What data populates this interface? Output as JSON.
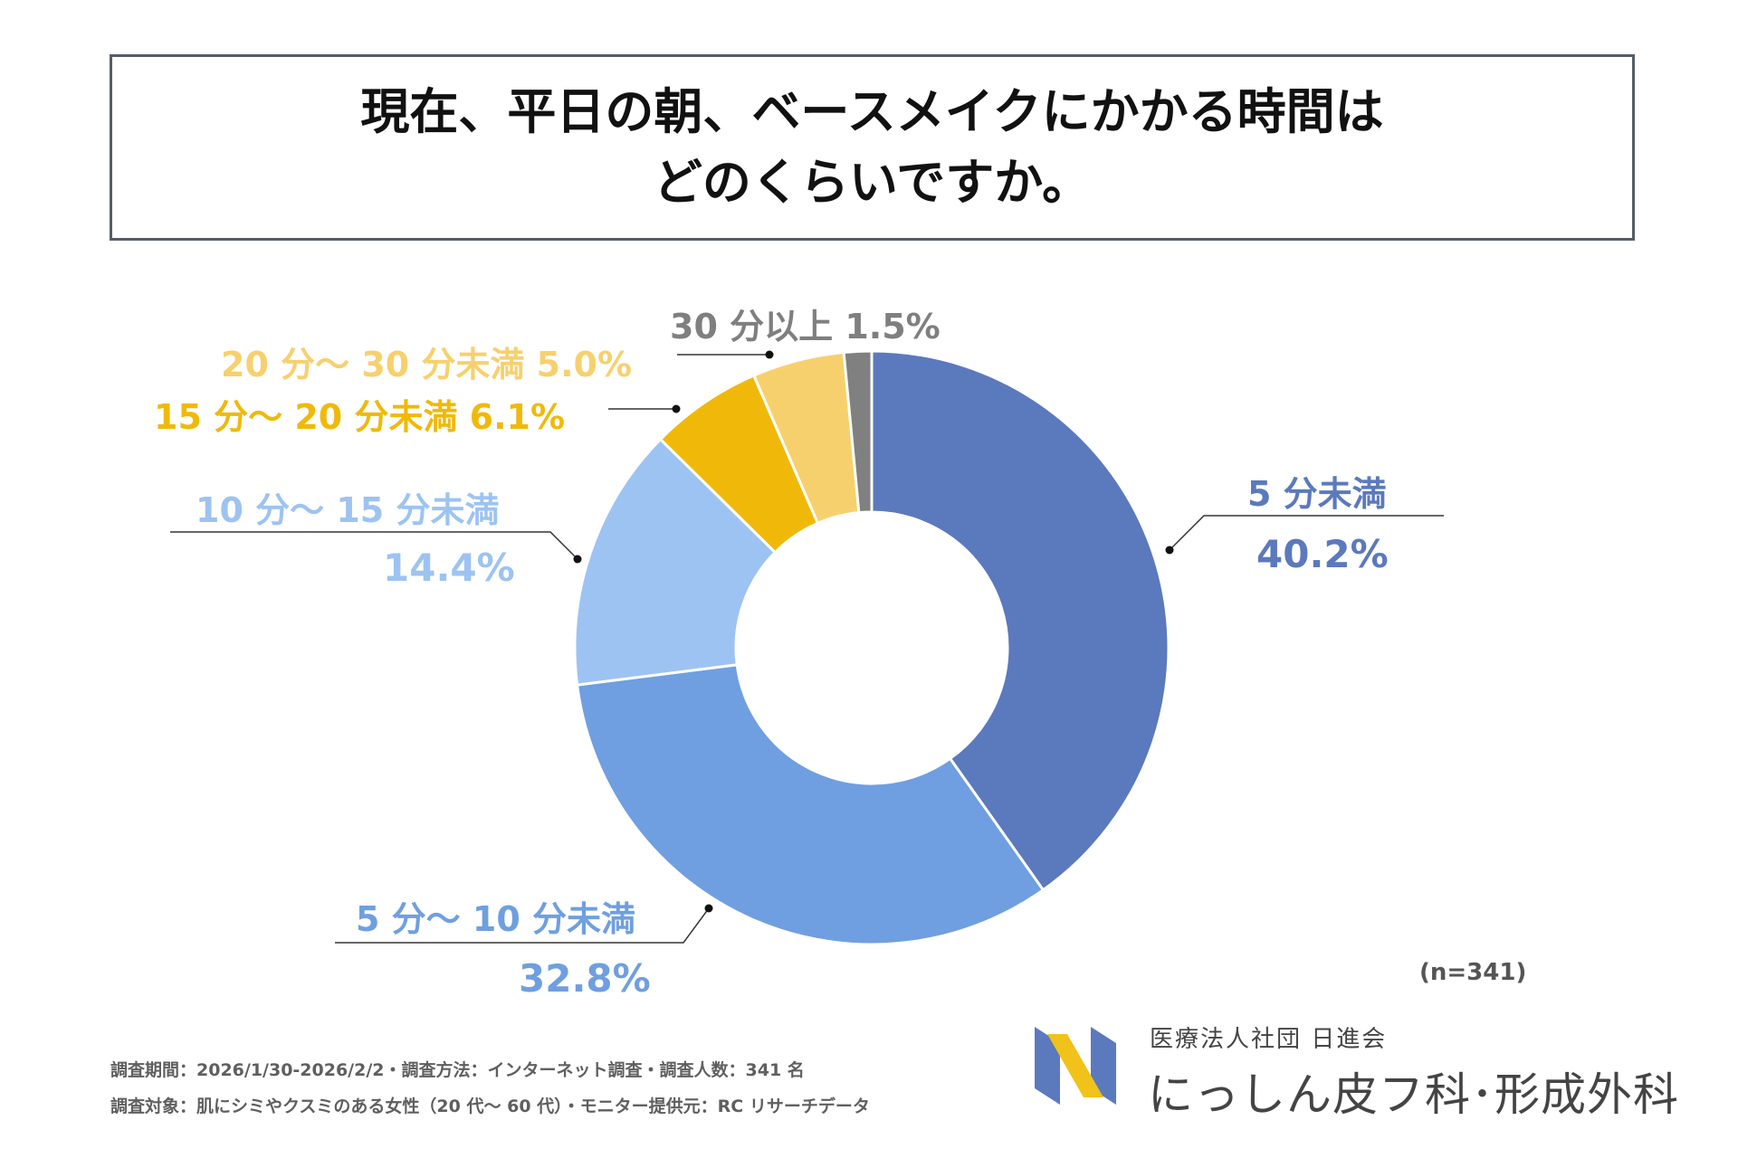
{
  "title": {
    "line1": "現在、平日の朝、ベースメイクにかかる時間は",
    "line2": "どのくらいですか。"
  },
  "chart_data": {
    "type": "pie",
    "variant": "donut",
    "title": "現在、平日の朝、ベースメイクにかかる時間はどのくらいですか。",
    "categories": [
      "5 分未満",
      "5 分～ 10 分未満",
      "10 分～ 15 分未満",
      "15 分～ 20 分未満",
      "20 分～ 30 分未満",
      "30 分以上"
    ],
    "values": [
      40.2,
      32.8,
      14.4,
      6.1,
      5.0,
      1.5
    ],
    "value_labels": [
      "40.2%",
      "32.8%",
      "14.4%",
      "6.1%",
      "5.0%",
      "1.5%"
    ],
    "colors": [
      "#5b79bd",
      "#6f9fe0",
      "#9dc3f2",
      "#f0b90a",
      "#f7d06e",
      "#808080"
    ],
    "unit": "%",
    "sample_size": "(n=341)"
  },
  "labels": {
    "s0_name": "5 分未満",
    "s0_value": "40.2%",
    "s1_name": "5 分～ 10 分未満",
    "s1_value": "32.8%",
    "s2_name": "10 分～ 15 分未満",
    "s2_value": "14.4%",
    "s3_full": "15 分～ 20 分未満  6.1%",
    "s4_full": "20 分～ 30 分未満  5.0%",
    "s5_full": "30 分以上  1.5%"
  },
  "note": "(n=341)",
  "footer": {
    "line1": "調査期間：2026/1/30-2026/2/2・調査方法：インターネット調査・調査人数：341 名",
    "line2": "調査対象：肌にシミやクスミのある女性（20 代～ 60 代）・モニター提供元：RC リサーチデータ"
  },
  "org": {
    "small": "医療法人社団 日進会",
    "large": "にっしん皮フ科･形成外科"
  }
}
